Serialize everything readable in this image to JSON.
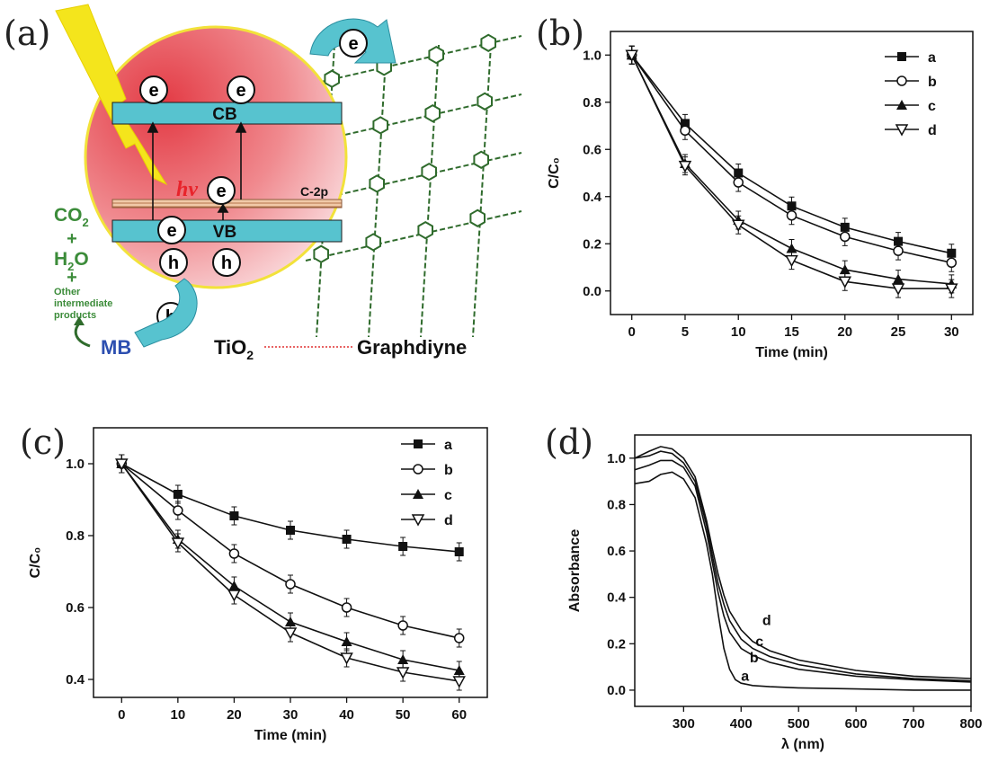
{
  "panel_labels": [
    "(a)",
    "(b)",
    "(c)",
    "(d)"
  ],
  "schematic": {
    "cb": "CB",
    "vb": "VB",
    "c2p": "C-2p",
    "hv": "hv",
    "e": "e",
    "h": "h",
    "co2": "CO2",
    "plus": "+",
    "h2o": "H2O",
    "other1": "Other",
    "other2": "intermediate",
    "other3": "products",
    "mb": "MB",
    "tio2": "TiO2",
    "graphdiyne": "Graphdiyne",
    "colors": {
      "particle": "#e8565e",
      "band": "#57c3cf",
      "text_green": "#3c8c3a",
      "mb_blue": "#2d4fb0",
      "hv_red": "#e8232b",
      "lattice": "#2f6b2c"
    }
  },
  "chart_data": [
    {
      "type": "line",
      "panel": "(b)",
      "xlabel": "Time (min)",
      "ylabel": "C/C₀",
      "xlim": [
        -2,
        32
      ],
      "ylim": [
        -0.1,
        1.1
      ],
      "xticks": [
        0,
        5,
        10,
        15,
        20,
        25,
        30
      ],
      "yticks": [
        0.0,
        0.2,
        0.4,
        0.6,
        0.8,
        1.0
      ],
      "legend_position": "top-right",
      "x": [
        0,
        5,
        10,
        15,
        20,
        25,
        30
      ],
      "series": [
        {
          "name": "a",
          "marker": "square",
          "values": [
            1.0,
            0.71,
            0.5,
            0.36,
            0.27,
            0.21,
            0.16
          ]
        },
        {
          "name": "b",
          "marker": "circle-open",
          "values": [
            1.0,
            0.68,
            0.46,
            0.32,
            0.23,
            0.17,
            0.12
          ]
        },
        {
          "name": "c",
          "marker": "triangle",
          "values": [
            1.0,
            0.54,
            0.3,
            0.18,
            0.09,
            0.05,
            0.03
          ]
        },
        {
          "name": "d",
          "marker": "triangle-down-open",
          "values": [
            1.0,
            0.53,
            0.28,
            0.13,
            0.04,
            0.01,
            0.01
          ]
        }
      ]
    },
    {
      "type": "line",
      "panel": "(c)",
      "xlabel": "Time (min)",
      "ylabel": "C/C₀",
      "xlim": [
        -5,
        65
      ],
      "ylim": [
        0.35,
        1.1
      ],
      "xticks": [
        0,
        10,
        20,
        30,
        40,
        50,
        60
      ],
      "yticks": [
        0.4,
        0.6,
        0.8,
        1.0
      ],
      "legend_position": "top-right",
      "x": [
        0,
        10,
        20,
        30,
        40,
        50,
        60
      ],
      "series": [
        {
          "name": "a",
          "marker": "square",
          "values": [
            1.0,
            0.915,
            0.855,
            0.815,
            0.79,
            0.77,
            0.755
          ]
        },
        {
          "name": "b",
          "marker": "circle-open",
          "values": [
            1.0,
            0.87,
            0.75,
            0.665,
            0.6,
            0.55,
            0.515
          ]
        },
        {
          "name": "c",
          "marker": "triangle",
          "values": [
            1.0,
            0.79,
            0.66,
            0.56,
            0.505,
            0.455,
            0.425
          ]
        },
        {
          "name": "d",
          "marker": "triangle-down-open",
          "values": [
            1.0,
            0.78,
            0.635,
            0.53,
            0.46,
            0.42,
            0.395
          ]
        }
      ]
    },
    {
      "type": "line",
      "panel": "(d)",
      "xlabel": "λ (nm)",
      "ylabel": "Absorbance",
      "xlim": [
        215,
        800
      ],
      "ylim": [
        -0.07,
        1.1
      ],
      "xticks": [
        300,
        400,
        500,
        600,
        700,
        800
      ],
      "yticks": [
        0.0,
        0.2,
        0.4,
        0.6,
        0.8,
        1.0
      ],
      "curve_labels_on_plot": true,
      "series": [
        {
          "name": "a",
          "x": [
            215,
            240,
            260,
            280,
            300,
            320,
            340,
            350,
            360,
            370,
            380,
            390,
            400,
            420,
            450,
            500,
            600,
            700,
            800
          ],
          "values": [
            0.89,
            0.9,
            0.93,
            0.94,
            0.91,
            0.83,
            0.63,
            0.5,
            0.33,
            0.18,
            0.09,
            0.045,
            0.03,
            0.02,
            0.015,
            0.01,
            0.005,
            0.0,
            0.0
          ]
        },
        {
          "name": "b",
          "x": [
            215,
            240,
            260,
            280,
            300,
            320,
            340,
            350,
            360,
            370,
            380,
            400,
            420,
            450,
            500,
            600,
            700,
            800
          ],
          "values": [
            0.95,
            0.97,
            0.99,
            0.99,
            0.96,
            0.88,
            0.68,
            0.55,
            0.42,
            0.32,
            0.25,
            0.18,
            0.15,
            0.12,
            0.09,
            0.06,
            0.045,
            0.035
          ]
        },
        {
          "name": "c",
          "x": [
            215,
            240,
            260,
            280,
            300,
            320,
            340,
            350,
            360,
            370,
            380,
            400,
            420,
            450,
            500,
            600,
            700,
            800
          ],
          "values": [
            1.0,
            1.01,
            1.03,
            1.02,
            0.98,
            0.9,
            0.71,
            0.58,
            0.46,
            0.37,
            0.3,
            0.22,
            0.18,
            0.145,
            0.11,
            0.07,
            0.05,
            0.04
          ]
        },
        {
          "name": "d",
          "x": [
            215,
            240,
            260,
            280,
            300,
            320,
            340,
            350,
            360,
            370,
            380,
            400,
            420,
            450,
            500,
            600,
            700,
            800
          ],
          "values": [
            1.0,
            1.03,
            1.05,
            1.04,
            1.0,
            0.92,
            0.73,
            0.61,
            0.5,
            0.41,
            0.34,
            0.26,
            0.21,
            0.17,
            0.13,
            0.085,
            0.06,
            0.05
          ]
        }
      ]
    }
  ]
}
